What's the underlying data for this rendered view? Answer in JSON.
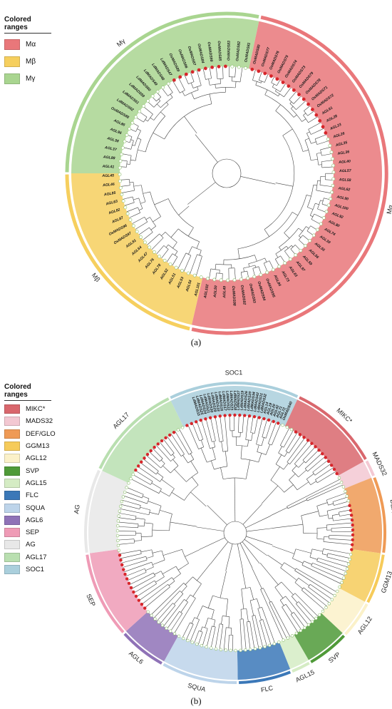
{
  "panel_a": {
    "legend_title": "Colored ranges",
    "legend": [
      {
        "name": "Mα",
        "color": "#e9777a"
      },
      {
        "name": "Mβ",
        "color": "#f6cf5e"
      },
      {
        "name": "Mγ",
        "color": "#a9d590"
      }
    ],
    "clade_labels": [
      "Mα",
      "Mβ",
      "Mγ"
    ],
    "caption": "(a)",
    "sectors": [
      {
        "clade": "Mα",
        "color": "#e9777a",
        "start": 282,
        "end": 463
      },
      {
        "clade": "Mβ",
        "color": "#f6cf5e",
        "start": 463,
        "end": 540
      },
      {
        "clade": "Mγ",
        "color": "#a9d590",
        "start": 540,
        "end": 642
      }
    ],
    "leaf_labels": [
      "OsMADS80",
      "OsMADS77",
      "OsMADS76",
      "OsMADS75",
      "OsMADS74",
      "OsMADS73",
      "OsMADS79",
      "OsMADS78",
      "OsMADS71",
      "OsMADS72",
      "AGL61",
      "AGL28",
      "AGL23",
      "AGL26",
      "AGL35",
      "AGL36",
      "AGL40",
      "AGL57",
      "AGL58",
      "AGL62",
      "AGL90",
      "AGL100",
      "AGL92",
      "AGL80",
      "AGL74",
      "AGL39",
      "AGL55",
      "AGL56",
      "AGL59",
      "AGL97",
      "AGL63",
      "AGL73",
      "AGL84",
      "OsMADS95",
      "OsMADS94",
      "OsMADS93",
      "OsMADS92",
      "OsMADS98",
      "AGL49",
      "AGL50",
      "AGL102",
      "AGL101",
      "AGL54",
      "AGL53",
      "AGL51",
      "AGL52",
      "AGL78",
      "AGL76",
      "AGL47",
      "AGL64",
      "AGL81",
      "OsMADS97",
      "OsMADS96",
      "AGL87",
      "AGL82",
      "AGL63",
      "AGL85",
      "AGL46",
      "AGL45",
      "AGL41",
      "AGL88",
      "AGL37",
      "AGL38",
      "AGL96",
      "AGL86",
      "OsMADS88",
      "LdMADS62",
      "LdMADS61",
      "LdMADS59",
      "LdMADS60",
      "LdMADS49",
      "LdMADS48",
      "LdMADS47",
      "OsMADS89",
      "OsMADS86",
      "OsMADS87",
      "OsMADS84",
      "OsMADS99",
      "OsMADS85",
      "OsMADS83",
      "OsMADS82",
      "OsMADS81"
    ]
  },
  "panel_b": {
    "legend_title": "Colored ranges",
    "legend": [
      {
        "name": "MIKC*",
        "color": "#d9676d"
      },
      {
        "name": "MADS32",
        "color": "#f3c8d2"
      },
      {
        "name": "DEF/GLO",
        "color": "#ef9a55"
      },
      {
        "name": "GGM13",
        "color": "#f6cb5a"
      },
      {
        "name": "AGL12",
        "color": "#fbf1c9"
      },
      {
        "name": "SVP",
        "color": "#4f9a38"
      },
      {
        "name": "AGL15",
        "color": "#d5ecc4"
      },
      {
        "name": "FLC",
        "color": "#3b78b8"
      },
      {
        "name": "SQUA",
        "color": "#bdd4ea"
      },
      {
        "name": "AGL6",
        "color": "#8f72b7"
      },
      {
        "name": "SEP",
        "color": "#ef9bb6"
      },
      {
        "name": "AG",
        "color": "#e8e8e8"
      },
      {
        "name": "AGL17",
        "color": "#b9dfb0"
      },
      {
        "name": "SOC1",
        "color": "#aacfdc"
      }
    ],
    "clade_labels": [
      "MIKC*",
      "MADS32",
      "DEF/GLO",
      "GGM13",
      "AGL12",
      "SVP",
      "AGL15",
      "FLC",
      "SQUA",
      "AGL6",
      "SEP",
      "AG",
      "AGL17",
      "SOC1"
    ],
    "caption": "(b)",
    "sectors": [
      {
        "clade": "MIKC*",
        "color": "#d9676d",
        "start": 295,
        "end": 331
      },
      {
        "clade": "MADS32",
        "color": "#f3c8d2",
        "start": 331,
        "end": 338
      },
      {
        "clade": "DEF/GLO",
        "color": "#ef9a55",
        "start": 338,
        "end": 368
      },
      {
        "clade": "GGM13",
        "color": "#f6cb5a",
        "start": 368,
        "end": 388
      },
      {
        "clade": "AGL12",
        "color": "#fbf1c9",
        "start": 388,
        "end": 403
      },
      {
        "clade": "SVP",
        "color": "#4f9a38",
        "start": 403,
        "end": 420
      },
      {
        "clade": "AGL15",
        "color": "#d5ecc4",
        "start": 420,
        "end": 428
      },
      {
        "clade": "FLC",
        "color": "#3b78b8",
        "start": 428,
        "end": 449
      },
      {
        "clade": "SQUA",
        "color": "#bdd4ea",
        "start": 449,
        "end": 479
      },
      {
        "clade": "AGL6",
        "color": "#8f72b7",
        "start": 479,
        "end": 498
      },
      {
        "clade": "SEP",
        "color": "#ef9bb6",
        "start": 498,
        "end": 532
      },
      {
        "clade": "AG",
        "color": "#e8e8e8",
        "start": 532,
        "end": 565
      },
      {
        "clade": "AGL17",
        "color": "#b9dfb0",
        "start": 565,
        "end": 604
      },
      {
        "clade": "SOC1",
        "color": "#aacfdc",
        "start": 604,
        "end": 655
      }
    ],
    "leaf_labels": [
      "LdMADS33",
      "LdMADS25",
      "LdMADS24",
      "LdMADS21",
      "LdMADS30",
      "LdMADS29",
      "LdMADS18",
      "LdMADS16",
      "LdMADS17",
      "LdMADS22",
      "LdMADS23",
      "LdMADS28",
      "LdMADS27",
      "LdMADS19",
      "LdMADS26",
      "LdMADS20",
      "LdMADS34",
      "LdMADS42",
      "LdMADS31",
      "LdMADS32",
      "AGL14",
      "AGL19",
      "AGL20",
      "AGL42",
      "AGL71",
      "AGL72",
      "OsMADS40"
    ]
  }
}
